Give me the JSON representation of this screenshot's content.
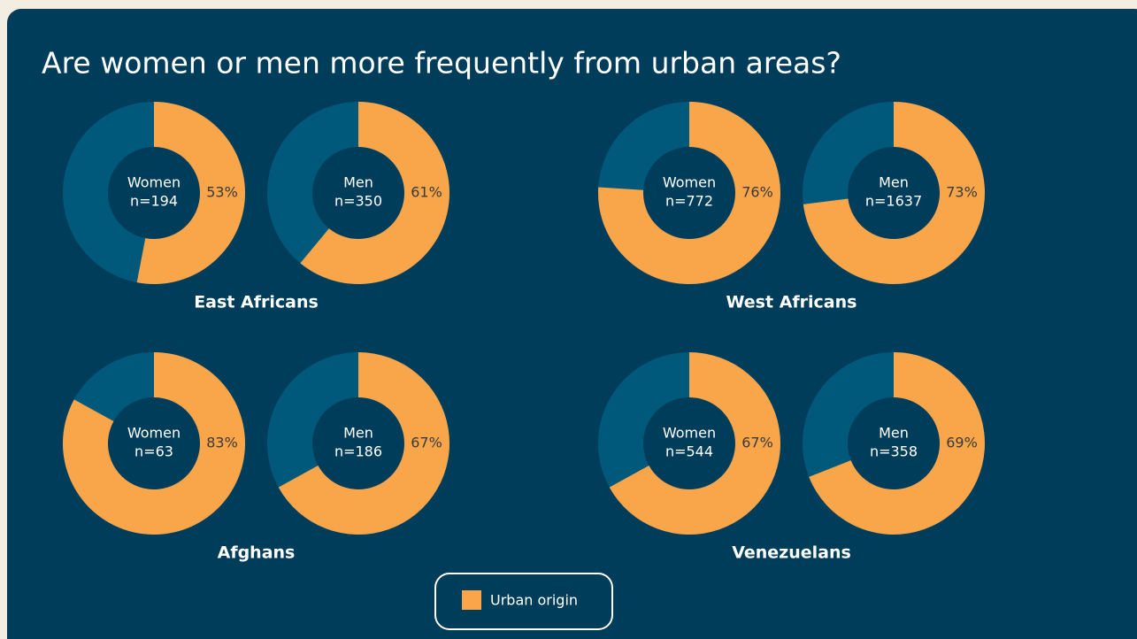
{
  "title": "Are women or men more frequently from urban areas?",
  "legend": {
    "label": "Urban origin",
    "color": "#f9a54a"
  },
  "chart_data": [
    {
      "type": "donut",
      "title": "East Africans",
      "categories": [
        "Women",
        "Men"
      ],
      "subtitles": [
        "n=194",
        "n=350"
      ],
      "values": [
        53,
        61
      ],
      "value_labels": [
        "53%",
        "61%"
      ],
      "color": "#f9a54a",
      "rest_color": "#00587a"
    },
    {
      "type": "donut",
      "title": "West Africans",
      "categories": [
        "Women",
        "Men"
      ],
      "subtitles": [
        "n=772",
        "n=1637"
      ],
      "values": [
        76,
        73
      ],
      "value_labels": [
        "76%",
        "73%"
      ],
      "color": "#f9a54a",
      "rest_color": "#00587a"
    },
    {
      "type": "donut",
      "title": "Afghans",
      "categories": [
        "Women",
        "Men"
      ],
      "subtitles": [
        "n=63",
        "n=186"
      ],
      "values": [
        83,
        67
      ],
      "value_labels": [
        "83%",
        "67%"
      ],
      "color": "#f9a54a",
      "rest_color": "#00587a"
    },
    {
      "type": "donut",
      "title": "Venezuelans",
      "categories": [
        "Women",
        "Men"
      ],
      "subtitles": [
        "n=544",
        "n=358"
      ],
      "values": [
        67,
        69
      ],
      "value_labels": [
        "67%",
        "69%"
      ],
      "color": "#f9a54a",
      "rest_color": "#00587a"
    }
  ]
}
